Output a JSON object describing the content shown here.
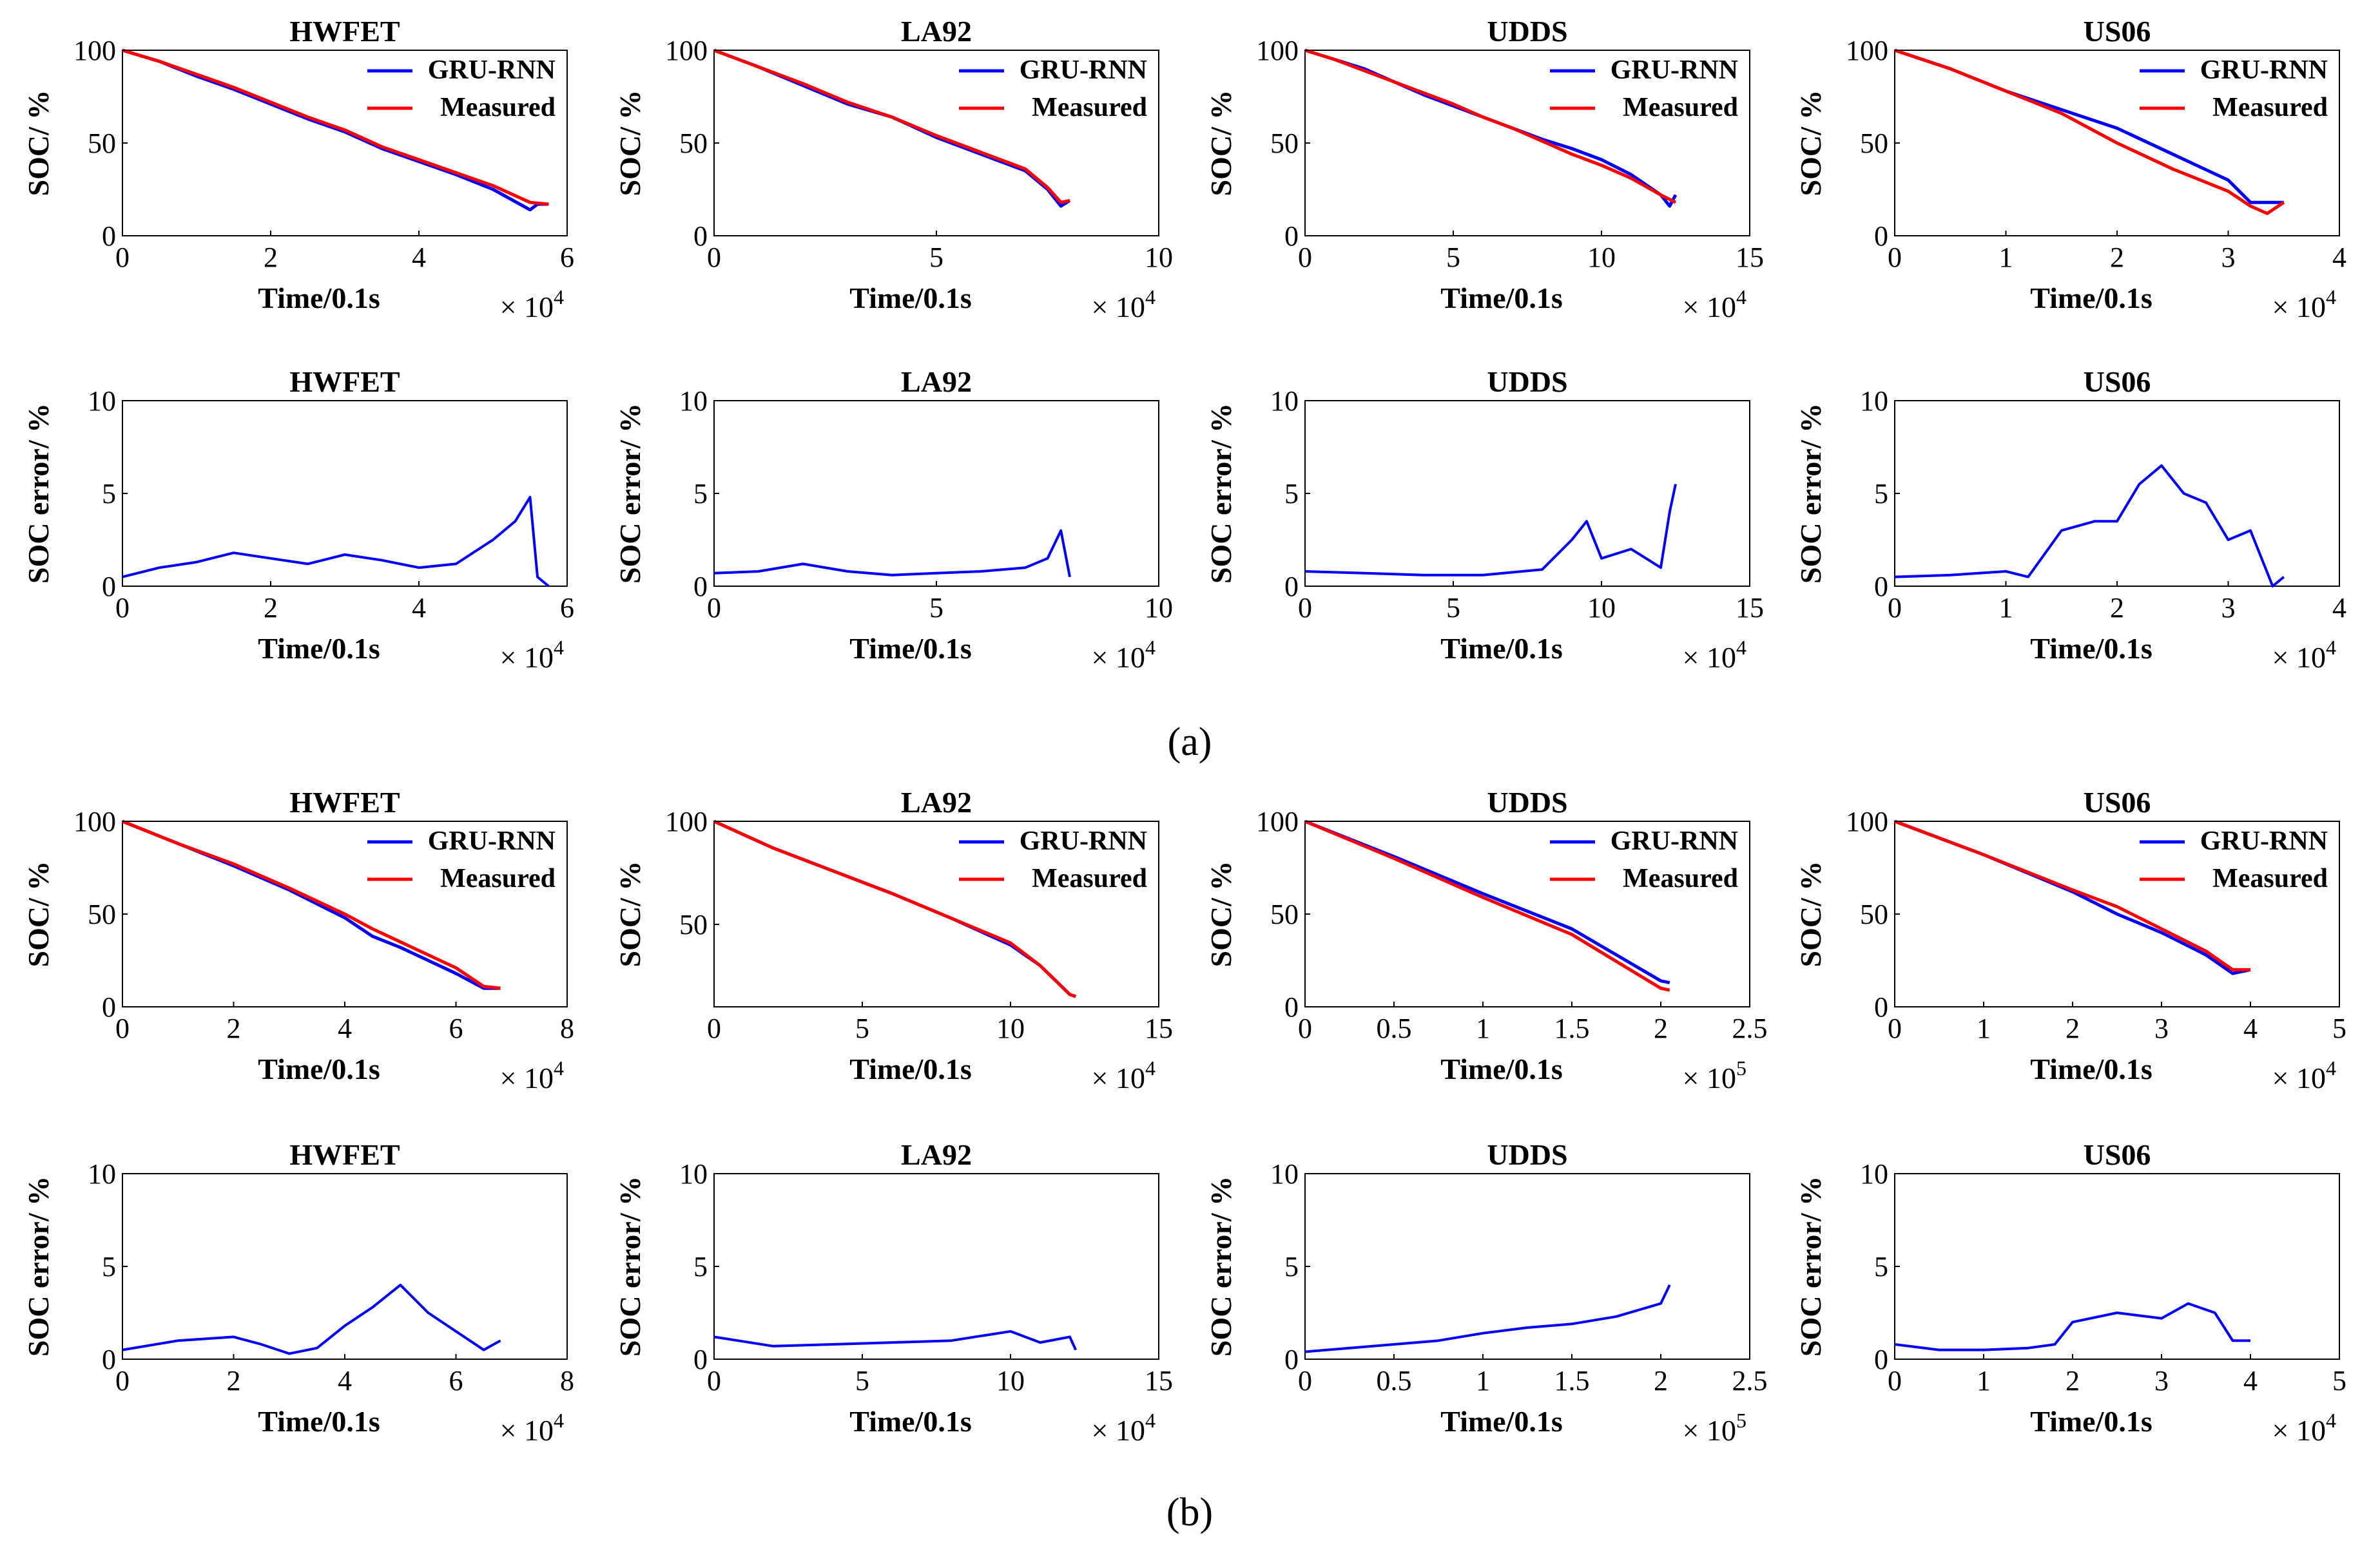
{
  "figure": {
    "panel_labels": [
      "(a)",
      "(b)"
    ],
    "colors": {
      "gru": "#0000ff",
      "measured": "#ff0000"
    }
  },
  "chart_data": [
    {
      "id": "a-soc-hwfet",
      "type": "line",
      "title": "HWFET",
      "xlabel": "Time/0.1s",
      "ylabel": "SOC/ %",
      "x_multiplier": "× 10",
      "x_exponent": "4",
      "xlim": [
        0,
        6
      ],
      "ylim": [
        0,
        100
      ],
      "xticks": [
        0,
        2,
        4,
        6
      ],
      "yticks": [
        0,
        50,
        100
      ],
      "series": [
        {
          "name": "GRU-RNN",
          "x": [
            0,
            0.5,
            1,
            1.5,
            2,
            2.5,
            3,
            3.5,
            4,
            4.5,
            5,
            5.5,
            5.6,
            5.75
          ],
          "y": [
            100,
            94,
            86,
            79,
            71,
            63,
            56,
            47,
            40,
            33,
            25,
            14,
            17,
            17
          ]
        },
        {
          "name": "Measured",
          "x": [
            0,
            0.5,
            1,
            1.5,
            2,
            2.5,
            3,
            3.5,
            4,
            4.5,
            5,
            5.5,
            5.75
          ],
          "y": [
            100,
            94,
            87,
            80,
            72,
            64,
            57,
            48,
            41,
            34,
            27,
            18,
            17
          ]
        }
      ]
    },
    {
      "id": "a-soc-la92",
      "type": "line",
      "title": "LA92",
      "xlabel": "Time/0.1s",
      "ylabel": "SOC/ %",
      "x_multiplier": "× 10",
      "x_exponent": "4",
      "xlim": [
        0,
        10
      ],
      "ylim": [
        0,
        100
      ],
      "xticks": [
        0,
        5,
        10
      ],
      "yticks": [
        0,
        50,
        100
      ],
      "series": [
        {
          "name": "GRU-RNN",
          "x": [
            0,
            1,
            2,
            3,
            4,
            5,
            6,
            7,
            7.5,
            7.8,
            8
          ],
          "y": [
            100,
            91,
            81,
            71,
            64,
            53,
            44,
            35,
            25,
            16,
            19
          ]
        },
        {
          "name": "Measured",
          "x": [
            0,
            1,
            2,
            3,
            4,
            5,
            6,
            7,
            7.5,
            7.8,
            8
          ],
          "y": [
            100,
            91,
            82,
            72,
            64,
            54,
            45,
            36,
            26,
            18,
            19
          ]
        }
      ]
    },
    {
      "id": "a-soc-udds",
      "type": "line",
      "title": "UDDS",
      "xlabel": "Time/0.1s",
      "ylabel": "SOC/ %",
      "x_multiplier": "× 10",
      "x_exponent": "4",
      "xlim": [
        0,
        15
      ],
      "ylim": [
        0,
        100
      ],
      "xticks": [
        0,
        5,
        10,
        15
      ],
      "yticks": [
        0,
        50,
        100
      ],
      "series": [
        {
          "name": "GRU-RNN",
          "x": [
            0,
            1,
            2,
            3,
            4,
            5,
            6,
            7,
            8,
            9,
            10,
            11,
            12,
            12.3,
            12.5
          ],
          "y": [
            100,
            95,
            90,
            83,
            76,
            70,
            64,
            58,
            52,
            47,
            41,
            33,
            22,
            16,
            22
          ]
        },
        {
          "name": "Measured",
          "x": [
            0,
            1,
            2,
            3,
            4,
            5,
            6,
            7,
            8,
            9,
            10,
            11,
            12,
            12.5
          ],
          "y": [
            100,
            95,
            89,
            83,
            77,
            71,
            64,
            58,
            51,
            44,
            38,
            31,
            22,
            18
          ]
        }
      ]
    },
    {
      "id": "a-soc-us06",
      "type": "line",
      "title": "US06",
      "xlabel": "Time/0.1s",
      "ylabel": "SOC/ %",
      "x_multiplier": "× 10",
      "x_exponent": "4",
      "xlim": [
        0,
        4
      ],
      "ylim": [
        0,
        100
      ],
      "xticks": [
        0,
        1,
        2,
        3,
        4
      ],
      "yticks": [
        0,
        50,
        100
      ],
      "series": [
        {
          "name": "GRU-RNN",
          "x": [
            0,
            0.5,
            1,
            1.5,
            2,
            2.5,
            3,
            3.2,
            3.5
          ],
          "y": [
            100,
            90,
            78,
            68,
            58,
            44,
            30,
            18,
            18
          ]
        },
        {
          "name": "Measured",
          "x": [
            0,
            0.5,
            1,
            1.5,
            2,
            2.5,
            3,
            3.2,
            3.35,
            3.5
          ],
          "y": [
            100,
            90,
            78,
            66,
            50,
            36,
            24,
            16,
            12,
            18
          ]
        }
      ]
    },
    {
      "id": "a-err-hwfet",
      "type": "line",
      "title": "HWFET",
      "xlabel": "Time/0.1s",
      "ylabel": "SOC error/ %",
      "x_multiplier": "× 10",
      "x_exponent": "4",
      "xlim": [
        0,
        6
      ],
      "ylim": [
        0,
        10
      ],
      "xticks": [
        0,
        2,
        4,
        6
      ],
      "yticks": [
        0,
        5,
        10
      ],
      "series": [
        {
          "name": "GRU-RNN",
          "x": [
            0,
            0.5,
            1,
            1.5,
            2,
            2.5,
            3,
            3.5,
            4,
            4.5,
            5,
            5.3,
            5.5,
            5.6,
            5.75
          ],
          "y": [
            0.5,
            1,
            1.3,
            1.8,
            1.5,
            1.2,
            1.7,
            1.4,
            1,
            1.2,
            2.5,
            3.5,
            4.8,
            0.5,
            0
          ]
        }
      ]
    },
    {
      "id": "a-err-la92",
      "type": "line",
      "title": "LA92",
      "xlabel": "Time/0.1s",
      "ylabel": "SOC error/ %",
      "x_multiplier": "× 10",
      "x_exponent": "4",
      "xlim": [
        0,
        10
      ],
      "ylim": [
        0,
        10
      ],
      "xticks": [
        0,
        5,
        10
      ],
      "yticks": [
        0,
        5,
        10
      ],
      "series": [
        {
          "name": "GRU-RNN",
          "x": [
            0,
            1,
            2,
            3,
            4,
            5,
            6,
            7,
            7.5,
            7.8,
            8
          ],
          "y": [
            0.7,
            0.8,
            1.2,
            0.8,
            0.6,
            0.7,
            0.8,
            1,
            1.5,
            3,
            0.5
          ]
        }
      ]
    },
    {
      "id": "a-err-udds",
      "type": "line",
      "title": "UDDS",
      "xlabel": "Time/0.1s",
      "ylabel": "SOC error/ %",
      "x_multiplier": "× 10",
      "x_exponent": "4",
      "xlim": [
        0,
        15
      ],
      "ylim": [
        0,
        10
      ],
      "xticks": [
        0,
        5,
        10,
        15
      ],
      "yticks": [
        0,
        5,
        10
      ],
      "series": [
        {
          "name": "GRU-RNN",
          "x": [
            0,
            2,
            4,
            6,
            8,
            9,
            9.5,
            10,
            11,
            12,
            12.3,
            12.5
          ],
          "y": [
            0.8,
            0.7,
            0.6,
            0.6,
            0.9,
            2.5,
            3.5,
            1.5,
            2,
            1,
            4,
            5.5
          ]
        }
      ]
    },
    {
      "id": "a-err-us06",
      "type": "line",
      "title": "US06",
      "xlabel": "Time/0.1s",
      "ylabel": "SOC error/ %",
      "x_multiplier": "× 10",
      "x_exponent": "4",
      "xlim": [
        0,
        4
      ],
      "ylim": [
        0,
        10
      ],
      "xticks": [
        0,
        1,
        2,
        3,
        4
      ],
      "yticks": [
        0,
        5,
        10
      ],
      "series": [
        {
          "name": "GRU-RNN",
          "x": [
            0,
            0.5,
            1,
            1.2,
            1.5,
            1.8,
            2,
            2.2,
            2.4,
            2.6,
            2.8,
            3,
            3.2,
            3.4,
            3.5
          ],
          "y": [
            0.5,
            0.6,
            0.8,
            0.5,
            3,
            3.5,
            3.5,
            5.5,
            6.5,
            5,
            4.5,
            2.5,
            3,
            0,
            0.5
          ]
        }
      ]
    },
    {
      "id": "b-soc-hwfet",
      "type": "line",
      "title": "HWFET",
      "xlabel": "Time/0.1s",
      "ylabel": "SOC/ %",
      "x_multiplier": "× 10",
      "x_exponent": "4",
      "xlim": [
        0,
        8
      ],
      "ylim": [
        0,
        100
      ],
      "xticks": [
        0,
        2,
        4,
        6,
        8
      ],
      "yticks": [
        0,
        50,
        100
      ],
      "series": [
        {
          "name": "GRU-RNN",
          "x": [
            0,
            1,
            2,
            3,
            4,
            4.5,
            5,
            6,
            6.5,
            6.8
          ],
          "y": [
            100,
            88,
            76,
            63,
            48,
            38,
            32,
            18,
            10,
            10
          ]
        },
        {
          "name": "Measured",
          "x": [
            0,
            1,
            2,
            3,
            4,
            4.5,
            5,
            6,
            6.5,
            6.8
          ],
          "y": [
            100,
            88,
            77,
            64,
            50,
            42,
            35,
            21,
            11,
            10
          ]
        }
      ]
    },
    {
      "id": "b-soc-la92",
      "type": "line",
      "title": "LA92",
      "xlabel": "Time/0.1s",
      "ylabel": "SOC/ %",
      "x_multiplier": "× 10",
      "x_exponent": "4",
      "xlim": [
        0,
        15
      ],
      "ylim": [
        10,
        100
      ],
      "xticks": [
        0,
        5,
        10,
        15
      ],
      "yticks": [
        50,
        100
      ],
      "series": [
        {
          "name": "GRU-RNN",
          "x": [
            0,
            2,
            4,
            6,
            8,
            10,
            11,
            12,
            12.2
          ],
          "y": [
            100,
            87,
            76,
            65,
            53,
            40,
            30,
            16,
            15
          ]
        },
        {
          "name": "Measured",
          "x": [
            0,
            2,
            4,
            6,
            8,
            10,
            11,
            12,
            12.2
          ],
          "y": [
            100,
            87,
            76,
            65,
            53,
            41,
            30,
            16,
            15
          ]
        }
      ]
    },
    {
      "id": "b-soc-udds",
      "type": "line",
      "title": "UDDS",
      "xlabel": "Time/0.1s",
      "ylabel": "SOC/ %",
      "x_multiplier": "× 10",
      "x_exponent": "5",
      "xlim": [
        0,
        2.5
      ],
      "ylim": [
        0,
        100
      ],
      "xticks": [
        0,
        0.5,
        1,
        1.5,
        2,
        2.5
      ],
      "yticks": [
        0,
        50,
        100
      ],
      "series": [
        {
          "name": "GRU-RNN",
          "x": [
            0,
            0.5,
            1,
            1.5,
            2,
            2.05
          ],
          "y": [
            100,
            81,
            61,
            42,
            14,
            13
          ]
        },
        {
          "name": "Measured",
          "x": [
            0,
            0.5,
            1,
            1.5,
            2,
            2.05
          ],
          "y": [
            100,
            80,
            59,
            39,
            10,
            9
          ]
        }
      ]
    },
    {
      "id": "b-soc-us06",
      "type": "line",
      "title": "US06",
      "xlabel": "Time/0.1s",
      "ylabel": "SOC/ %",
      "x_multiplier": "× 10",
      "x_exponent": "4",
      "xlim": [
        0,
        5
      ],
      "ylim": [
        0,
        100
      ],
      "xticks": [
        0,
        1,
        2,
        3,
        4,
        5
      ],
      "yticks": [
        0,
        50,
        100
      ],
      "series": [
        {
          "name": "GRU-RNN",
          "x": [
            0,
            1,
            2,
            2.5,
            3,
            3.5,
            3.8,
            4
          ],
          "y": [
            100,
            82,
            62,
            50,
            40,
            28,
            18,
            20
          ]
        },
        {
          "name": "Measured",
          "x": [
            0,
            1,
            2,
            2.5,
            3,
            3.5,
            3.8,
            4
          ],
          "y": [
            100,
            82,
            63,
            54,
            42,
            30,
            20,
            20
          ]
        }
      ]
    },
    {
      "id": "b-err-hwfet",
      "type": "line",
      "title": "HWFET",
      "xlabel": "Time/0.1s",
      "ylabel": "SOC error/ %",
      "x_multiplier": "× 10",
      "x_exponent": "4",
      "xlim": [
        0,
        8
      ],
      "ylim": [
        0,
        10
      ],
      "xticks": [
        0,
        2,
        4,
        6,
        8
      ],
      "yticks": [
        0,
        5,
        10
      ],
      "series": [
        {
          "name": "GRU-RNN",
          "x": [
            0,
            1,
            2,
            2.5,
            3,
            3.5,
            4,
            4.5,
            5,
            5.5,
            6,
            6.5,
            6.8
          ],
          "y": [
            0.5,
            1,
            1.2,
            0.8,
            0.3,
            0.6,
            1.8,
            2.8,
            4,
            2.5,
            1.5,
            0.5,
            1
          ]
        }
      ]
    },
    {
      "id": "b-err-la92",
      "type": "line",
      "title": "LA92",
      "xlabel": "Time/0.1s",
      "ylabel": "SOC error/ %",
      "x_multiplier": "× 10",
      "x_exponent": "4",
      "xlim": [
        0,
        15
      ],
      "ylim": [
        0,
        10
      ],
      "xticks": [
        0,
        5,
        10,
        15
      ],
      "yticks": [
        0,
        5,
        10
      ],
      "series": [
        {
          "name": "GRU-RNN",
          "x": [
            0,
            2,
            4,
            6,
            8,
            10,
            11,
            12,
            12.2
          ],
          "y": [
            1.2,
            0.7,
            0.8,
            0.9,
            1,
            1.5,
            0.9,
            1.2,
            0.5
          ]
        }
      ]
    },
    {
      "id": "b-err-udds",
      "type": "line",
      "title": "UDDS",
      "xlabel": "Time/0.1s",
      "ylabel": "SOC error/ %",
      "x_multiplier": "× 10",
      "x_exponent": "5",
      "xlim": [
        0,
        2.5
      ],
      "ylim": [
        0,
        10
      ],
      "xticks": [
        0,
        0.5,
        1,
        1.5,
        2,
        2.5
      ],
      "yticks": [
        0,
        5,
        10
      ],
      "series": [
        {
          "name": "GRU-RNN",
          "x": [
            0,
            0.25,
            0.5,
            0.75,
            1,
            1.25,
            1.5,
            1.75,
            2,
            2.05
          ],
          "y": [
            0.4,
            0.6,
            0.8,
            1,
            1.4,
            1.7,
            1.9,
            2.3,
            3,
            4
          ]
        }
      ]
    },
    {
      "id": "b-err-us06",
      "type": "line",
      "title": "US06",
      "xlabel": "Time/0.1s",
      "ylabel": "SOC error/ %",
      "x_multiplier": "× 10",
      "x_exponent": "4",
      "xlim": [
        0,
        5
      ],
      "ylim": [
        0,
        10
      ],
      "xticks": [
        0,
        1,
        2,
        3,
        4,
        5
      ],
      "yticks": [
        0,
        5,
        10
      ],
      "series": [
        {
          "name": "GRU-RNN",
          "x": [
            0,
            0.5,
            1,
            1.5,
            1.8,
            2,
            2.5,
            3,
            3.3,
            3.6,
            3.8,
            4
          ],
          "y": [
            0.8,
            0.5,
            0.5,
            0.6,
            0.8,
            2,
            2.5,
            2.2,
            3,
            2.5,
            1,
            1
          ]
        }
      ]
    }
  ]
}
